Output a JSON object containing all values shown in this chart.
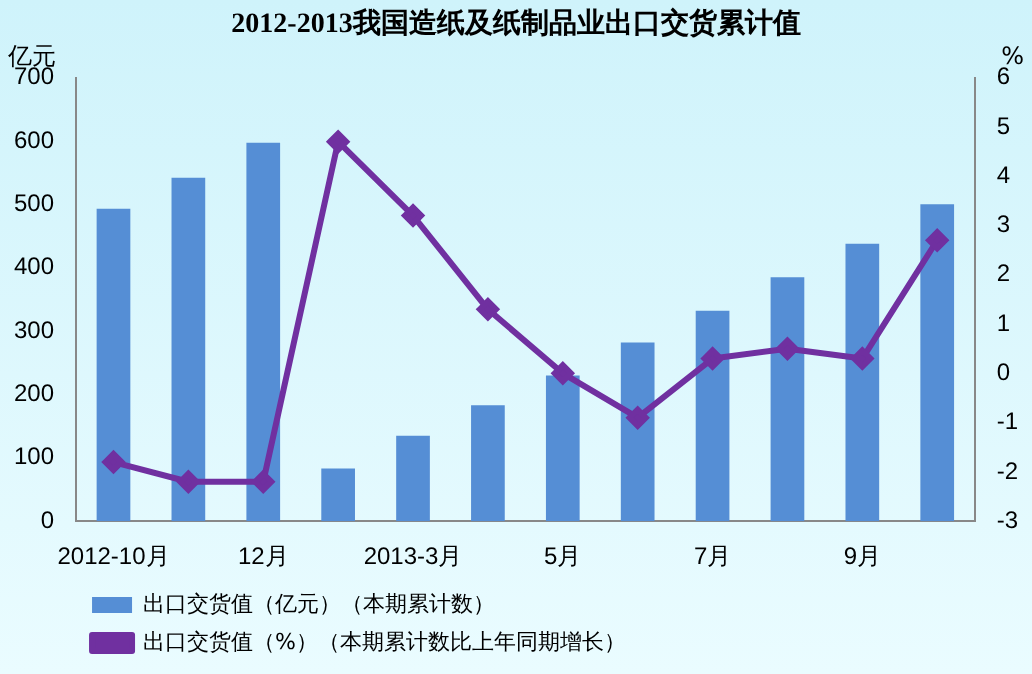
{
  "chart_data": {
    "type": "bar",
    "title": "2012-2013我国造纸及纸制品业出口交货累计值",
    "ylabel": "亿元",
    "y2label": "%",
    "categories": [
      "2012-10月",
      null,
      "12月",
      null,
      "2013-3月",
      null,
      "5月",
      null,
      "7月",
      null,
      "9月",
      null
    ],
    "series": [
      {
        "name": "出口交货值（亿元）（本期累计数）",
        "color": "#558ed5",
        "values": [
          493,
          542,
          597,
          83,
          135,
          183,
          230,
          282,
          332,
          385,
          438,
          500
        ]
      },
      {
        "name": "出口交货值（%）（本期累计数比上年同期增长）",
        "type": "line",
        "axis": "y2",
        "color": "#7030a0",
        "marker": "diamond",
        "values": [
          -1.8,
          -2.2,
          -2.2,
          4.7,
          3.2,
          1.3,
          0,
          -0.9,
          0.3,
          0.5,
          0.3,
          2.7
        ]
      }
    ],
    "ylim": [
      0,
      700
    ],
    "yticks": [
      0,
      100,
      200,
      300,
      400,
      500,
      600,
      700
    ],
    "y2lim": [
      -3,
      6
    ],
    "y2ticks": [
      -3,
      -2,
      -1,
      0,
      1,
      2,
      3,
      4,
      5,
      6
    ],
    "grid": false,
    "legend": "bottom"
  }
}
